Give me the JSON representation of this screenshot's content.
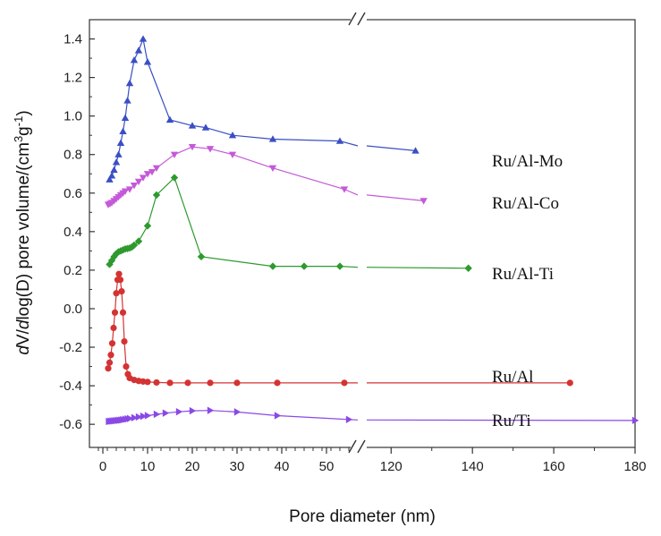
{
  "chart_data": {
    "type": "line",
    "xlabel": "Pore diameter (nm)",
    "ylabel_parts": [
      "d",
      "V/",
      "d",
      "log(D) pore volume/(cm",
      "3",
      "g",
      "-1",
      ")"
    ],
    "y_ticks": [
      "1.4",
      "1.2",
      "1.0",
      "0.8",
      "0.6",
      "0.4",
      "0.2",
      "0.0",
      "-0.2",
      "-0.4",
      "-0.6"
    ],
    "y_tick_values": [
      1.4,
      1.2,
      1.0,
      0.8,
      0.6,
      0.4,
      0.2,
      0.0,
      -0.2,
      -0.4,
      -0.6
    ],
    "ylim": [
      -0.72,
      1.5
    ],
    "x_ticks_left": [
      "0",
      "10",
      "20",
      "30",
      "40",
      "50"
    ],
    "x_tick_values_left": [
      0,
      10,
      20,
      30,
      40,
      50
    ],
    "x_ticks_right": [
      "120",
      "140",
      "160",
      "180"
    ],
    "x_tick_values_right": [
      120,
      140,
      160,
      180
    ],
    "x_broken_axis": {
      "left_segment": [
        -3,
        57
      ],
      "right_segment": [
        114,
        180
      ]
    },
    "series": [
      {
        "name": "Ru/Al-Mo",
        "color": "#3a4fc4",
        "marker": "triangle-up",
        "points": [
          [
            1.5,
            0.67
          ],
          [
            2,
            0.69
          ],
          [
            2.5,
            0.72
          ],
          [
            3,
            0.76
          ],
          [
            3.5,
            0.8
          ],
          [
            4,
            0.86
          ],
          [
            4.5,
            0.92
          ],
          [
            5,
            0.99
          ],
          [
            5.5,
            1.08
          ],
          [
            6,
            1.17
          ],
          [
            7,
            1.29
          ],
          [
            8,
            1.34
          ],
          [
            9,
            1.4
          ],
          [
            10,
            1.28
          ],
          [
            15,
            0.98
          ],
          [
            20,
            0.95
          ],
          [
            23,
            0.94
          ],
          [
            29,
            0.9
          ],
          [
            38,
            0.88
          ],
          [
            53,
            0.87
          ],
          [
            126,
            0.82
          ]
        ]
      },
      {
        "name": "Ru/Al-Co",
        "color": "#c45ad8",
        "marker": "triangle-down",
        "points": [
          [
            1.2,
            0.54
          ],
          [
            1.6,
            0.545
          ],
          [
            2,
            0.55
          ],
          [
            2.5,
            0.56
          ],
          [
            3,
            0.57
          ],
          [
            3.5,
            0.58
          ],
          [
            4,
            0.59
          ],
          [
            4.5,
            0.6
          ],
          [
            5,
            0.61
          ],
          [
            6,
            0.62
          ],
          [
            7,
            0.64
          ],
          [
            8,
            0.66
          ],
          [
            9,
            0.68
          ],
          [
            10,
            0.7
          ],
          [
            11,
            0.71
          ],
          [
            12,
            0.73
          ],
          [
            16,
            0.8
          ],
          [
            20,
            0.84
          ],
          [
            24,
            0.83
          ],
          [
            29,
            0.8
          ],
          [
            38,
            0.73
          ],
          [
            54,
            0.62
          ],
          [
            128,
            0.56
          ]
        ]
      },
      {
        "name": "Ru/Al-Ti",
        "color": "#2e9a2e",
        "marker": "diamond",
        "points": [
          [
            1.5,
            0.23
          ],
          [
            2,
            0.25
          ],
          [
            2.5,
            0.27
          ],
          [
            3,
            0.285
          ],
          [
            3.5,
            0.295
          ],
          [
            4,
            0.3
          ],
          [
            4.5,
            0.305
          ],
          [
            5,
            0.31
          ],
          [
            5.5,
            0.312
          ],
          [
            6,
            0.315
          ],
          [
            6.5,
            0.32
          ],
          [
            7,
            0.33
          ],
          [
            8,
            0.35
          ],
          [
            10,
            0.43
          ],
          [
            12,
            0.59
          ],
          [
            16,
            0.68
          ],
          [
            22,
            0.27
          ],
          [
            38,
            0.22
          ],
          [
            45,
            0.22
          ],
          [
            53,
            0.22
          ],
          [
            139,
            0.21
          ]
        ]
      },
      {
        "name": "Ru/Al",
        "color": "#d43333",
        "marker": "circle",
        "points": [
          [
            1.2,
            -0.31
          ],
          [
            1.5,
            -0.28
          ],
          [
            1.8,
            -0.24
          ],
          [
            2.1,
            -0.18
          ],
          [
            2.4,
            -0.1
          ],
          [
            2.7,
            -0.02
          ],
          [
            3,
            0.08
          ],
          [
            3.3,
            0.15
          ],
          [
            3.6,
            0.18
          ],
          [
            3.9,
            0.15
          ],
          [
            4.2,
            0.09
          ],
          [
            4.5,
            -0.02
          ],
          [
            4.8,
            -0.17
          ],
          [
            5.2,
            -0.3
          ],
          [
            5.6,
            -0.34
          ],
          [
            6,
            -0.36
          ],
          [
            7,
            -0.37
          ],
          [
            8,
            -0.375
          ],
          [
            9,
            -0.378
          ],
          [
            10,
            -0.38
          ],
          [
            12,
            -0.383
          ],
          [
            15,
            -0.385
          ],
          [
            19,
            -0.385
          ],
          [
            24,
            -0.385
          ],
          [
            30,
            -0.385
          ],
          [
            39,
            -0.385
          ],
          [
            54,
            -0.385
          ],
          [
            164,
            -0.385
          ]
        ]
      },
      {
        "name": "Ru/Ti",
        "color": "#8a49e6",
        "marker": "triangle-right",
        "points": [
          [
            1.3,
            -0.585
          ],
          [
            1.7,
            -0.584
          ],
          [
            2.1,
            -0.583
          ],
          [
            2.5,
            -0.582
          ],
          [
            2.9,
            -0.581
          ],
          [
            3.3,
            -0.58
          ],
          [
            3.7,
            -0.579
          ],
          [
            4.1,
            -0.578
          ],
          [
            4.5,
            -0.576
          ],
          [
            5,
            -0.574
          ],
          [
            5.5,
            -0.572
          ],
          [
            6,
            -0.57
          ],
          [
            7,
            -0.566
          ],
          [
            8,
            -0.562
          ],
          [
            9,
            -0.558
          ],
          [
            10,
            -0.555
          ],
          [
            12,
            -0.548
          ],
          [
            14,
            -0.542
          ],
          [
            17,
            -0.535
          ],
          [
            20,
            -0.53
          ],
          [
            24,
            -0.528
          ],
          [
            30,
            -0.536
          ],
          [
            39,
            -0.555
          ],
          [
            55,
            -0.575
          ],
          [
            180,
            -0.58
          ]
        ]
      }
    ]
  }
}
